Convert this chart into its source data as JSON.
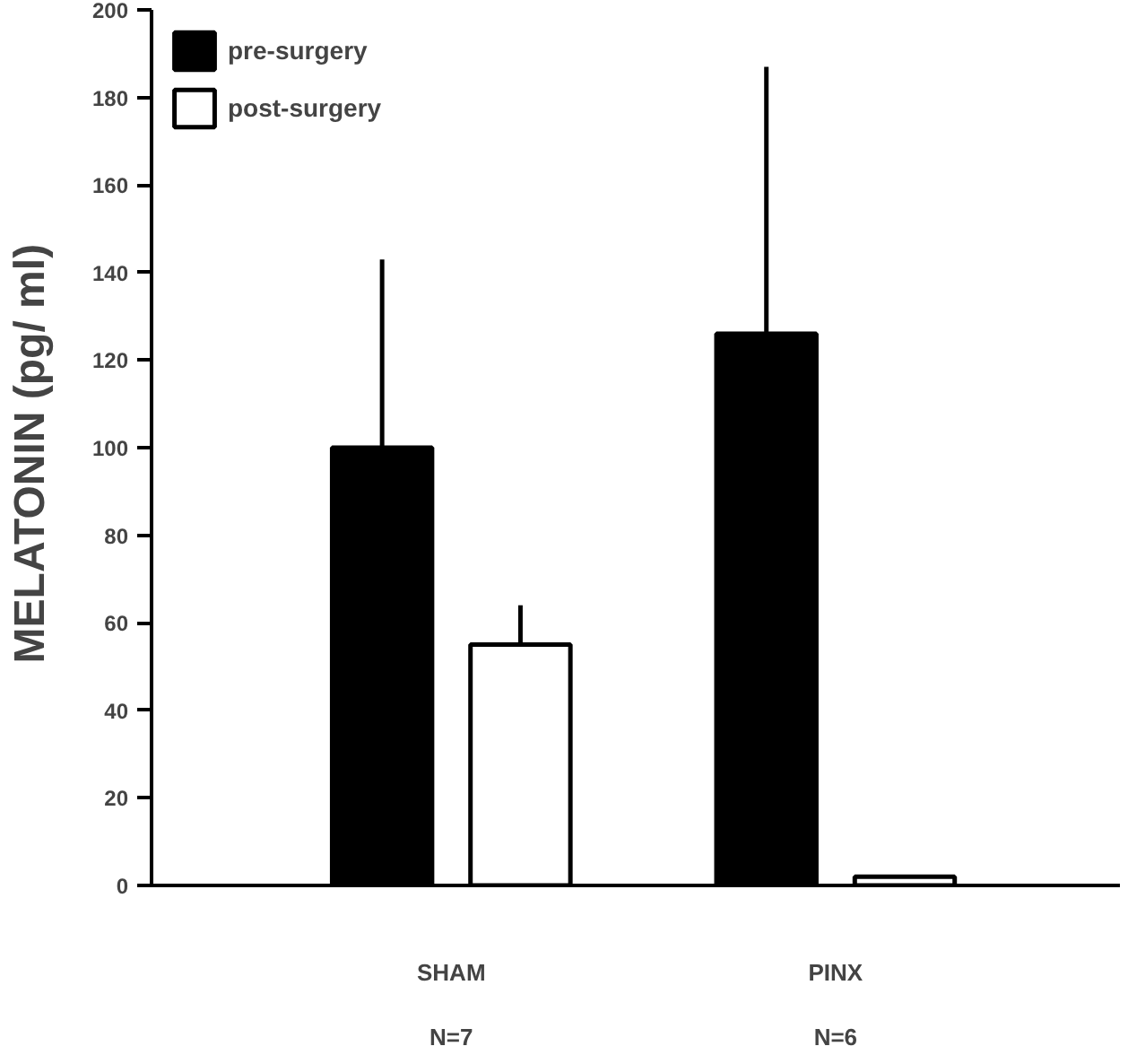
{
  "chart_data": {
    "type": "bar",
    "ylabel": "MELATONIN  (pg/ ml)",
    "categories": [
      "SHAM\n\nN=7",
      "PINX\n\nN=6"
    ],
    "series": [
      {
        "name": "pre-surgery",
        "color": "#000000",
        "values": [
          100,
          126
        ],
        "errors": [
          [
            100,
            143
          ],
          [
            126,
            187
          ]
        ]
      },
      {
        "name": "post-surgery",
        "color": "#ffffff",
        "values": [
          55,
          2
        ],
        "errors": [
          [
            55,
            64
          ],
          null
        ]
      }
    ],
    "ylim": [
      0,
      200
    ],
    "yticks": [
      0,
      20,
      40,
      60,
      80,
      100,
      120,
      140,
      160,
      180,
      200
    ],
    "grid": false,
    "legend": "top left"
  }
}
